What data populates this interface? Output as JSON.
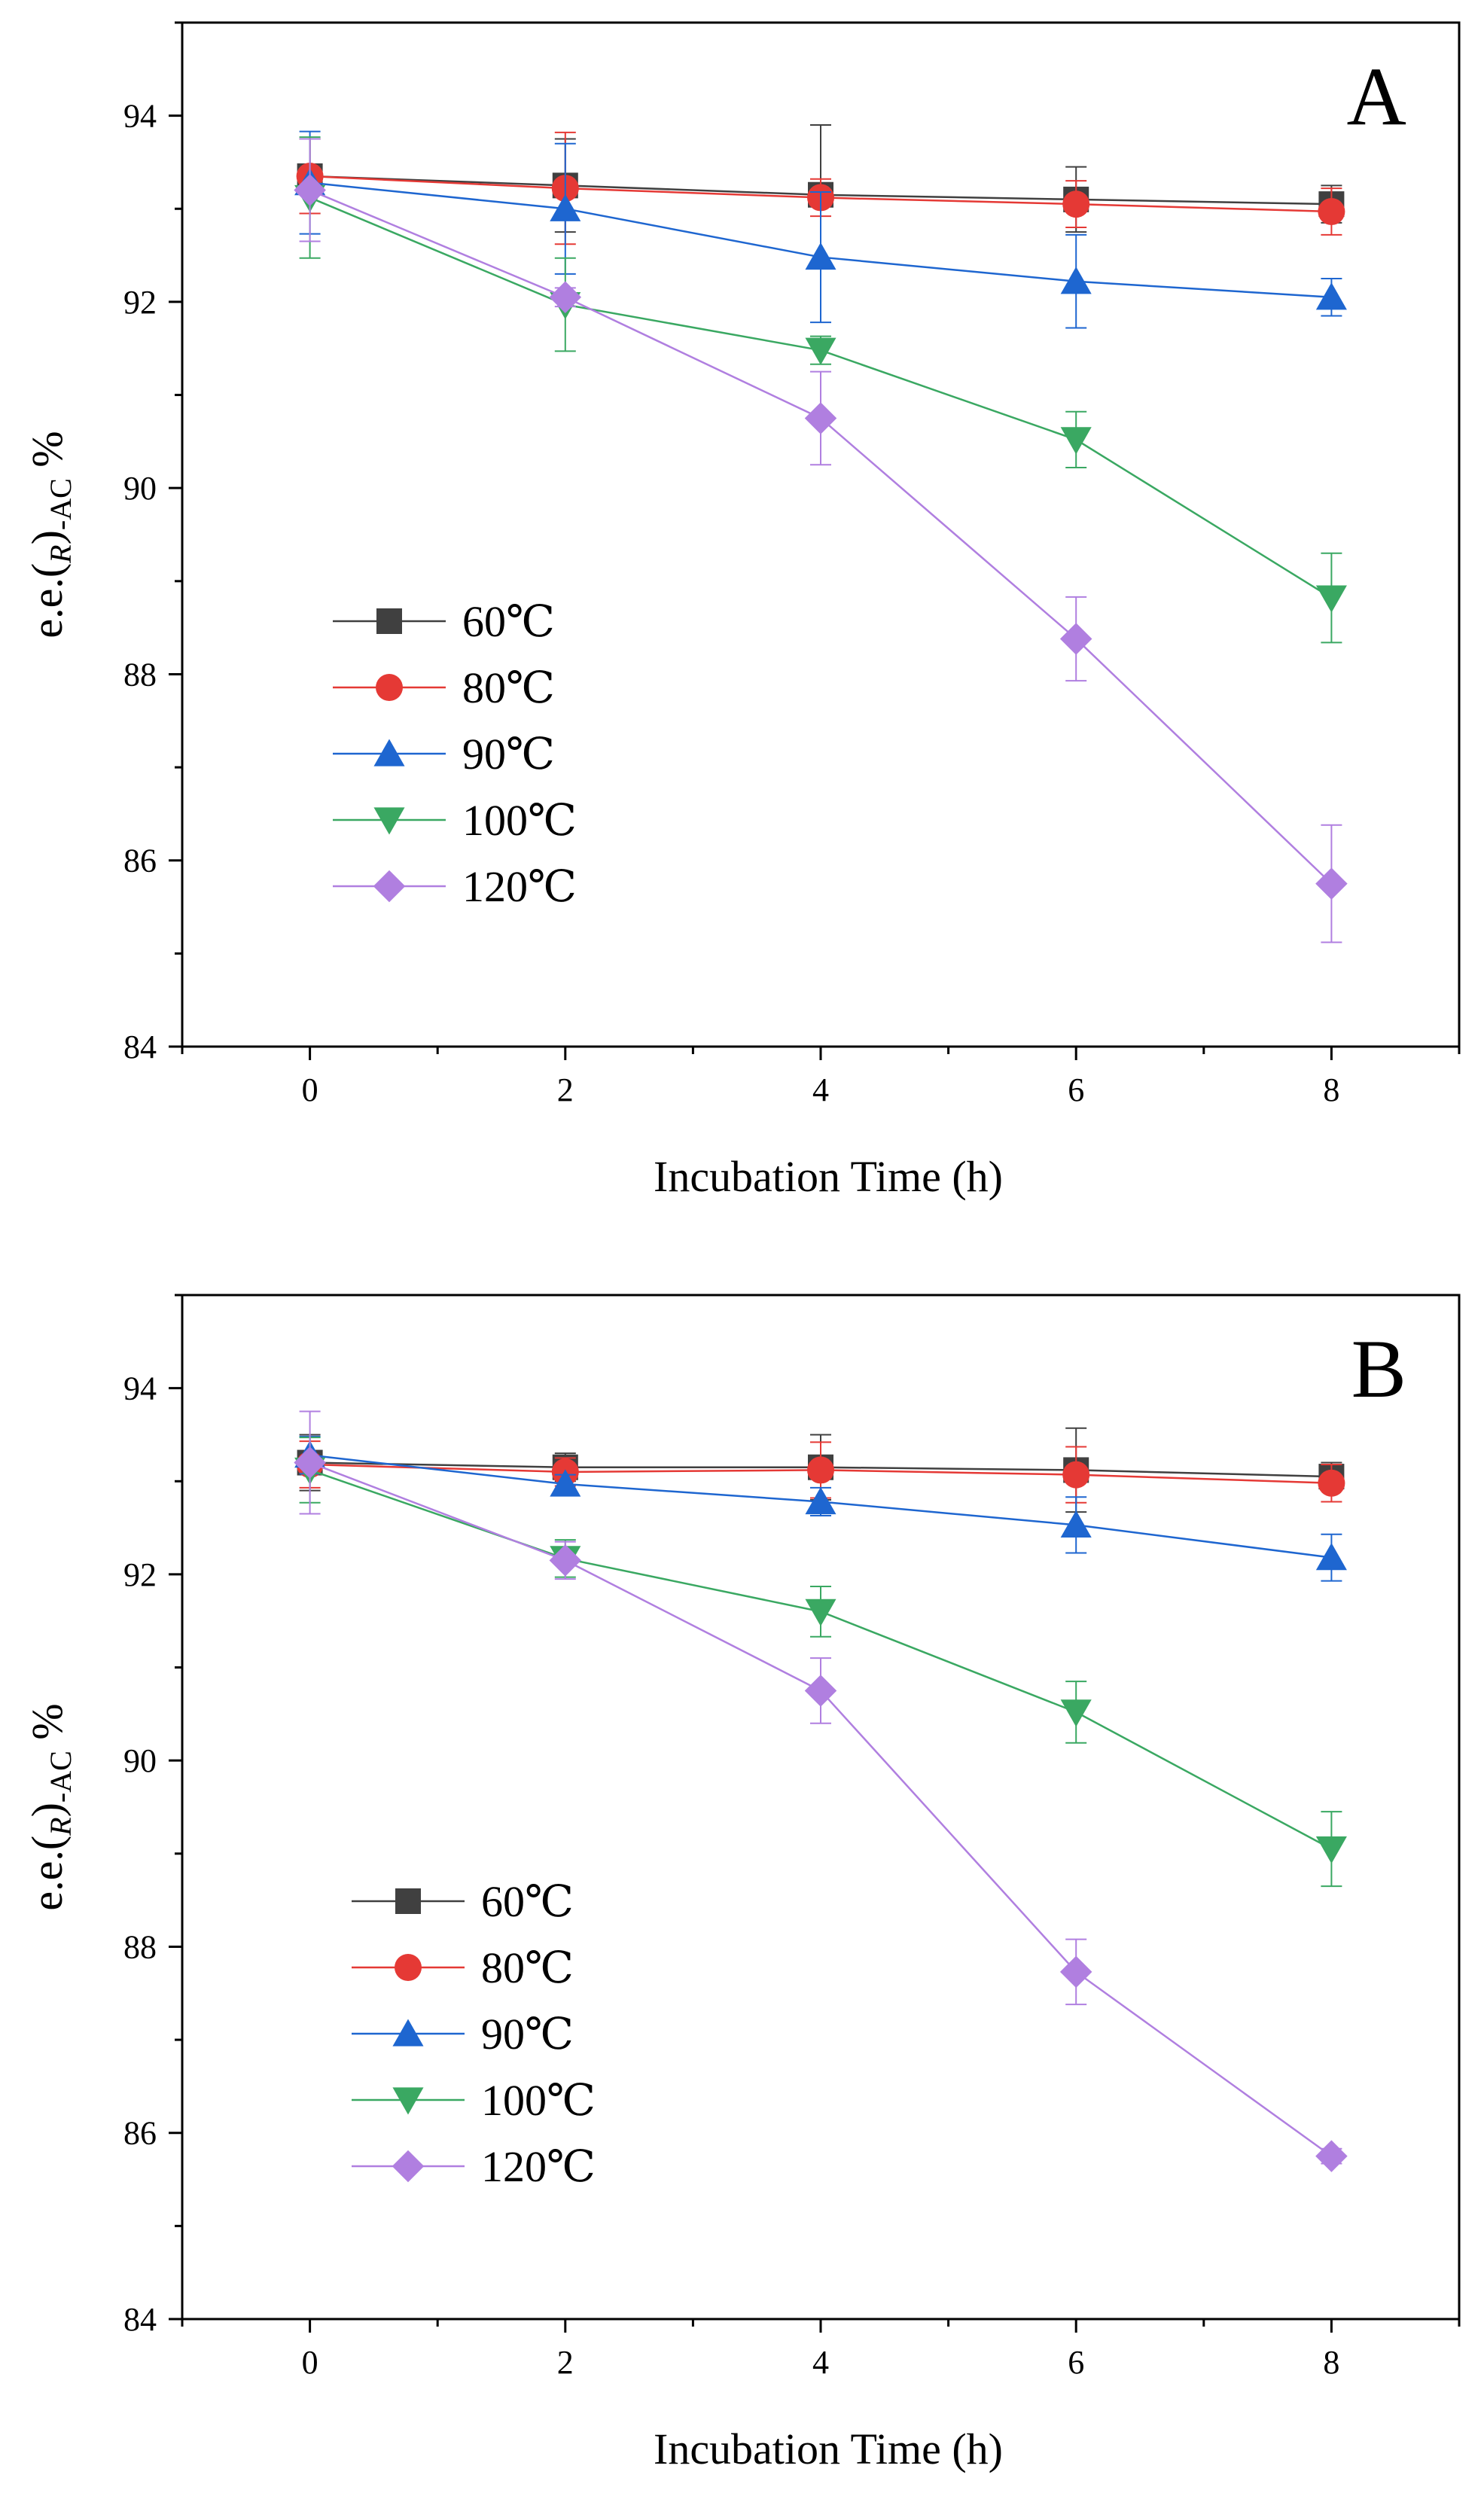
{
  "chart_data": [
    {
      "type": "line",
      "panel_label": "A",
      "xlabel": "Incubation Time (h)",
      "ylabel_main": "e.e.(",
      "ylabel_sub": "R",
      "ylabel_sub2": ")",
      "ylabel_sub3": "-AC",
      "ylabel_tail": " %",
      "xlim": [
        -1,
        9
      ],
      "ylim": [
        84,
        95
      ],
      "xticks": [
        0,
        2,
        4,
        6,
        8
      ],
      "xtick_labels": [
        "0",
        "2",
        "4",
        "6",
        "8"
      ],
      "yticks": [
        84,
        86,
        88,
        90,
        92,
        94
      ],
      "ytick_labels": [
        "84",
        "86",
        "88",
        "90",
        "92",
        "94"
      ],
      "legend_position": "middle-left",
      "x": [
        0,
        2,
        4,
        6,
        8
      ],
      "series": [
        {
          "name": "60℃",
          "color": "#404040",
          "marker": "square",
          "values": [
            93.35,
            93.25,
            93.15,
            93.1,
            93.05
          ],
          "errors": [
            0.4,
            0.5,
            0.75,
            0.35,
            0.2
          ]
        },
        {
          "name": "80℃",
          "color": "#e53935",
          "marker": "circle",
          "values": [
            93.35,
            93.22,
            93.12,
            93.05,
            92.97
          ],
          "errors": [
            0.4,
            0.6,
            0.2,
            0.25,
            0.25
          ]
        },
        {
          "name": "90℃",
          "color": "#1e66d0",
          "marker": "triangle-up",
          "values": [
            93.28,
            93.0,
            92.48,
            92.22,
            92.05
          ],
          "errors": [
            0.55,
            0.7,
            0.7,
            0.5,
            0.2
          ]
        },
        {
          "name": "100℃",
          "color": "#3aa862",
          "marker": "triangle-down",
          "values": [
            93.12,
            91.97,
            91.48,
            90.52,
            88.82
          ],
          "errors": [
            0.65,
            0.5,
            0.15,
            0.3,
            0.48
          ]
        },
        {
          "name": "120℃",
          "color": "#b07fe0",
          "marker": "diamond",
          "values": [
            93.2,
            92.05,
            90.75,
            88.38,
            85.75
          ],
          "errors": [
            0.55,
            0.1,
            0.5,
            0.45,
            0.63
          ]
        }
      ]
    },
    {
      "type": "line",
      "panel_label": "B",
      "xlabel": "Incubation Time (h)",
      "ylabel_main": "e.e.(",
      "ylabel_sub": "R",
      "ylabel_sub2": ")",
      "ylabel_sub3": "-AC",
      "ylabel_tail": " %",
      "xlim": [
        -1,
        9
      ],
      "ylim": [
        84,
        95
      ],
      "xticks": [
        0,
        2,
        4,
        6,
        8
      ],
      "xtick_labels": [
        "0",
        "2",
        "4",
        "6",
        "8"
      ],
      "yticks": [
        84,
        86,
        88,
        90,
        92,
        94
      ],
      "ytick_labels": [
        "84",
        "86",
        "88",
        "90",
        "92",
        "94"
      ],
      "legend_position": "middle-left",
      "x": [
        0,
        2,
        4,
        6,
        8
      ],
      "series": [
        {
          "name": "60℃",
          "color": "#404040",
          "marker": "square",
          "values": [
            93.2,
            93.15,
            93.15,
            93.12,
            93.05
          ],
          "errors": [
            0.3,
            0.15,
            0.35,
            0.45,
            0.15
          ]
        },
        {
          "name": "80℃",
          "color": "#e53935",
          "marker": "circle",
          "values": [
            93.18,
            93.1,
            93.12,
            93.07,
            92.98
          ],
          "errors": [
            0.25,
            0.15,
            0.3,
            0.3,
            0.2
          ]
        },
        {
          "name": "90℃",
          "color": "#1e66d0",
          "marker": "triangle-up",
          "values": [
            93.28,
            92.97,
            92.78,
            92.53,
            92.18
          ],
          "errors": [
            0.2,
            0.1,
            0.15,
            0.3,
            0.25
          ]
        },
        {
          "name": "100℃",
          "color": "#3aa862",
          "marker": "triangle-down",
          "values": [
            93.12,
            92.17,
            91.6,
            90.52,
            89.05
          ],
          "errors": [
            0.35,
            0.2,
            0.27,
            0.33,
            0.4
          ]
        },
        {
          "name": "120℃",
          "color": "#b07fe0",
          "marker": "diamond",
          "values": [
            93.2,
            92.15,
            90.75,
            87.73,
            85.75
          ],
          "errors": [
            0.55,
            0.2,
            0.35,
            0.35,
            0.08
          ]
        }
      ]
    }
  ]
}
